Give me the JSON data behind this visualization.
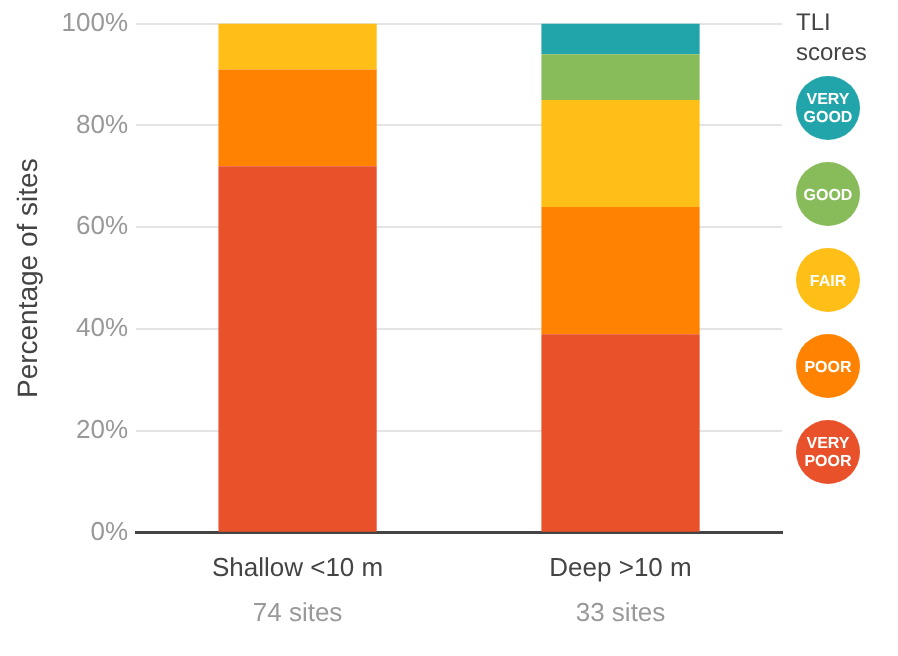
{
  "chart_data": {
    "type": "bar",
    "stacked": true,
    "ylabel": "Percentage of sites",
    "legend_title": "TLI scores",
    "legend": "right",
    "grid": "y",
    "categories": [
      "Shallow <10 m",
      "Deep >10 m"
    ],
    "ylim": [
      0,
      100
    ],
    "yticks": [
      {
        "value": 0,
        "label": "0%"
      },
      {
        "value": 20,
        "label": "20%"
      },
      {
        "value": 40,
        "label": "40%"
      },
      {
        "value": 60,
        "label": "60%"
      },
      {
        "value": 80,
        "label": "80%"
      },
      {
        "value": 100,
        "label": "100%"
      }
    ],
    "series": [
      {
        "name": "VERY POOR",
        "color": "#e8512a",
        "values": [
          72,
          39
        ]
      },
      {
        "name": "POOR",
        "color": "#ff8300",
        "values": [
          19,
          25
        ]
      },
      {
        "name": "FAIR",
        "color": "#ffbf17",
        "values": [
          9,
          21
        ]
      },
      {
        "name": "GOOD",
        "color": "#88bb59",
        "values": [
          null,
          9
        ]
      },
      {
        "name": "VERY GOOD",
        "color": "#21a5aa",
        "values": [
          null,
          6
        ]
      }
    ],
    "annotations": [
      "74 sites",
      "33 sites"
    ]
  }
}
